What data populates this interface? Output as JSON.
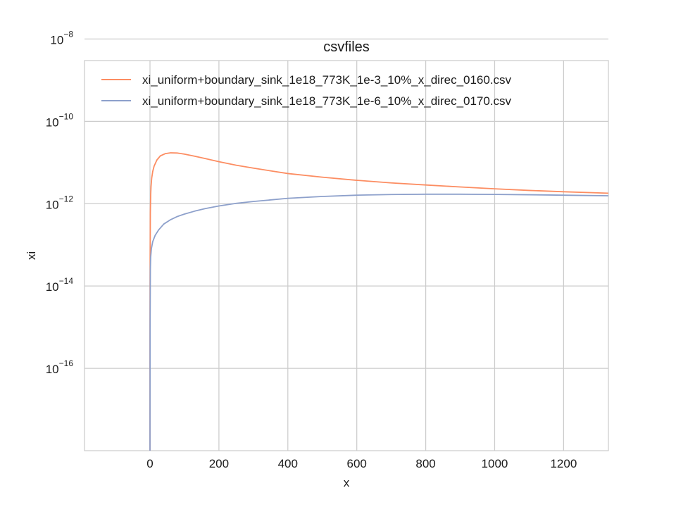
{
  "chart_data": {
    "type": "line",
    "title": "csvfiles",
    "xlabel": "x",
    "ylabel": "xi",
    "xlim": [
      -190,
      1330
    ],
    "ylim": [
      1e-18,
      3e-09
    ],
    "yscale": "log",
    "grid": true,
    "legend_position": "top-left",
    "x_ticks": [
      0,
      200,
      400,
      600,
      800,
      1000,
      1200
    ],
    "x_tick_labels": [
      "0",
      "200",
      "400",
      "600",
      "800",
      "1000",
      "1200"
    ],
    "y_ticks": [
      1e-16,
      1e-14,
      1e-12,
      1e-10,
      1e-08
    ],
    "y_tick_labels": [
      {
        "base": "10",
        "exp": "−16"
      },
      {
        "base": "10",
        "exp": "−14"
      },
      {
        "base": "10",
        "exp": "−12"
      },
      {
        "base": "10",
        "exp": "−10"
      },
      {
        "base": "10",
        "exp": "−8"
      }
    ],
    "series": [
      {
        "name": "xi_uniform+boundary_sink_1e18_773K_1e-3_10%_x_direc_0160.csv",
        "color": "#fc8d62",
        "x": [
          0,
          0.3,
          1,
          2,
          3,
          5,
          8,
          12,
          20,
          30,
          45,
          60,
          80,
          100,
          130,
          160,
          200,
          250,
          300,
          400,
          500,
          600,
          700,
          800,
          900,
          1000,
          1100,
          1200,
          1330
        ],
        "y": [
          1e-18,
          1e-14,
          6e-13,
          1.6e-12,
          2.6e-12,
          4.2e-12,
          6.1e-12,
          8.2e-12,
          1.15e-11,
          1.45e-11,
          1.65e-11,
          1.72e-11,
          1.7e-11,
          1.6e-11,
          1.42e-11,
          1.25e-11,
          1.05e-11,
          8.6e-12,
          7.3e-12,
          5.4e-12,
          4.4e-12,
          3.7e-12,
          3.2e-12,
          2.85e-12,
          2.55e-12,
          2.3e-12,
          2.1e-12,
          1.95e-12,
          1.8e-12
        ]
      },
      {
        "name": "xi_uniform+boundary_sink_1e18_773K_1e-6_10%_x_direc_0170.csv",
        "color": "#8da0cb",
        "x": [
          0,
          0.3,
          1,
          2,
          4,
          8,
          15,
          25,
          40,
          60,
          80,
          100,
          130,
          160,
          200,
          250,
          300,
          400,
          500,
          600,
          700,
          800,
          900,
          1000,
          1100,
          1200,
          1330
        ],
        "y": [
          1e-18,
          1e-15,
          2.5e-14,
          5e-14,
          8e-14,
          1.2e-13,
          1.7e-13,
          2.3e-13,
          3.2e-13,
          4.1e-13,
          4.9e-13,
          5.6e-13,
          6.6e-13,
          7.6e-13,
          8.8e-13,
          1.02e-12,
          1.13e-12,
          1.35e-12,
          1.5e-12,
          1.61e-12,
          1.67e-12,
          1.7e-12,
          1.7e-12,
          1.68e-12,
          1.65e-12,
          1.61e-12,
          1.56e-12
        ]
      }
    ]
  }
}
